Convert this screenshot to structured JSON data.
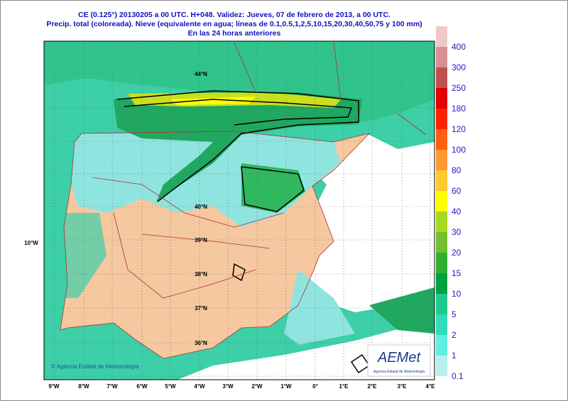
{
  "header": {
    "lines": [
      "CE (0.125°) 20130205 a 00 UTC.  H+048.  Validez: Jueves, 07 de febrero de 2013,  a  00 UTC.",
      "Precip. total (coloreada). Nieve (equivalente en agua; líneas de 0.1,0.5,1,2,5,10,15,20,30,40,50,75 y 100 mm)",
      "En las 24 horas anteriores"
    ]
  },
  "legend": {
    "items": [
      {
        "label": 0.1,
        "color": "#b8f0f0"
      },
      {
        "label": 1,
        "color": "#60f0e0"
      },
      {
        "label": 2,
        "color": "#30dcbc"
      },
      {
        "label": 5,
        "color": "#20c890"
      },
      {
        "label": 10,
        "color": "#00a040"
      },
      {
        "label": 15,
        "color": "#30b030"
      },
      {
        "label": 20,
        "color": "#70c030"
      },
      {
        "label": 30,
        "color": "#a8d820"
      },
      {
        "label": 40,
        "color": "#ffff00"
      },
      {
        "label": 60,
        "color": "#ffc830"
      },
      {
        "label": 80,
        "color": "#ff9830"
      },
      {
        "label": 100,
        "color": "#ff6010"
      },
      {
        "label": 120,
        "color": "#ff2000"
      },
      {
        "label": 180,
        "color": "#e00000"
      },
      {
        "label": 250,
        "color": "#c05050"
      },
      {
        "label": 300,
        "color": "#d89098"
      },
      {
        "label": 400,
        "color": "#f0c8c8"
      }
    ]
  },
  "lon_labels": [
    "9°W",
    "8°W",
    "7°W",
    "6°W",
    "5°W",
    "4°W",
    "3°W",
    "2°W",
    "1°W",
    "0°",
    "1°E",
    "2°E",
    "3°E",
    "4°E"
  ],
  "left_label": "10°W",
  "lat_labels": [
    "44°N",
    "40°N",
    "39°N",
    "38°N",
    "37°N",
    "36°N"
  ],
  "credit": "© Agencia Estatal de Meteorología",
  "logo": {
    "name": "AEMet",
    "subtitle": "Agencia Estatal de Meteorología"
  }
}
